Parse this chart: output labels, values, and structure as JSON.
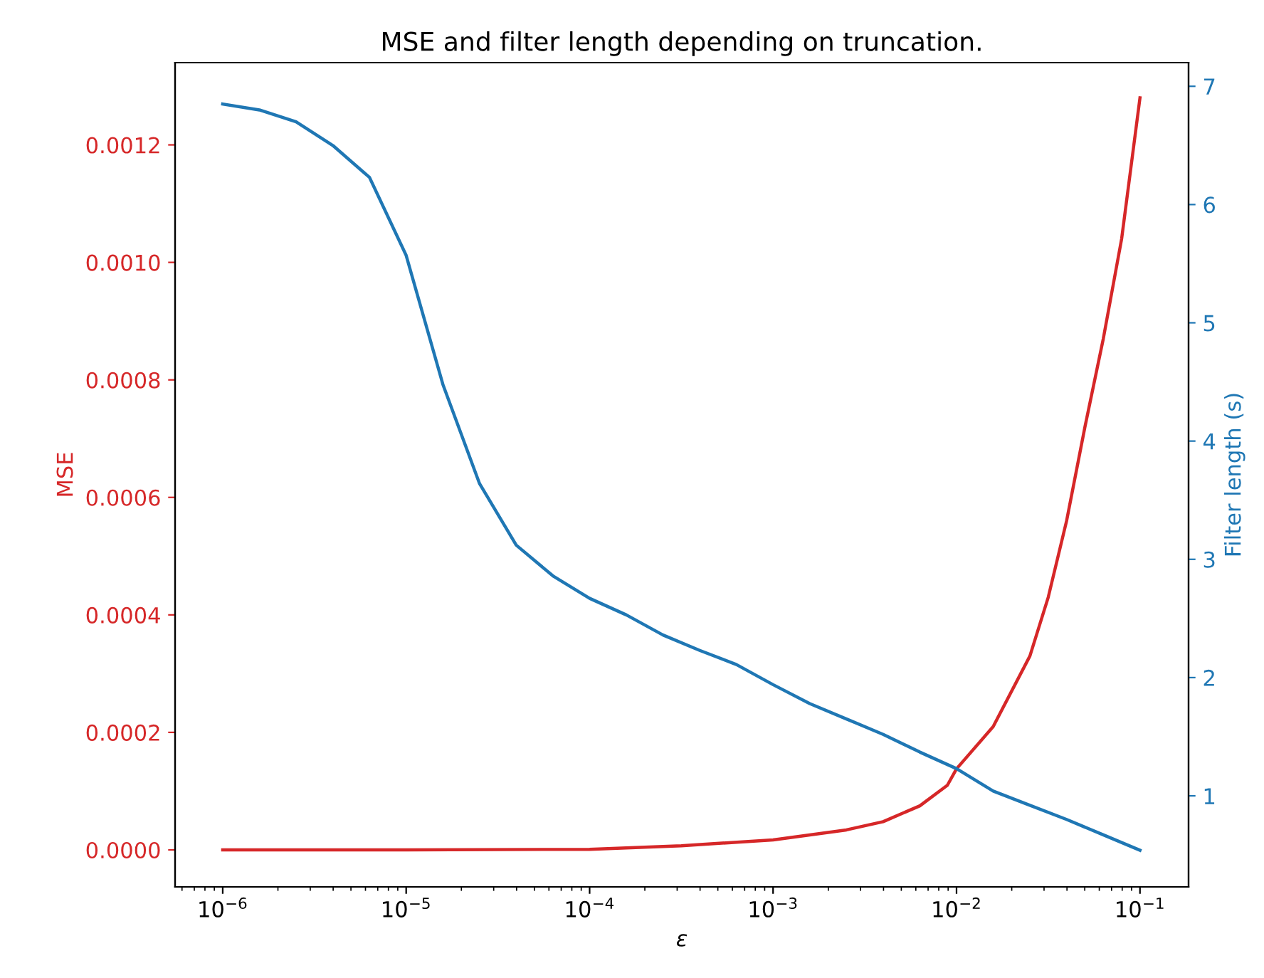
{
  "chart_data": {
    "type": "line",
    "title": "MSE and filter length depending on truncation.",
    "xlabel": "ε",
    "ylabel": "MSE",
    "y2label": "Filter length (s)",
    "log": "x",
    "grid": false,
    "legend": false,
    "xlim": [
      5.5e-07,
      0.184
    ],
    "xticks": [
      {
        "value": 1e-06,
        "label": "10$^{−6}$"
      },
      {
        "value": 1e-05,
        "label": "10$^{−5}$"
      },
      {
        "value": 0.0001,
        "label": "10$^{−4}$"
      },
      {
        "value": 0.001,
        "label": "10$^{−3}$"
      },
      {
        "value": 0.01,
        "label": "10$^{−2}$"
      },
      {
        "value": 0.1,
        "label": "10$^{−1}$"
      }
    ],
    "ylim": [
      -6.3e-05,
      0.00134
    ],
    "yticks": [
      {
        "value": 0,
        "label": "0.0000"
      },
      {
        "value": 0.0002,
        "label": "0.0002"
      },
      {
        "value": 0.0004,
        "label": "0.0004"
      },
      {
        "value": 0.0006,
        "label": "0.0006"
      },
      {
        "value": 0.0008,
        "label": "0.0008"
      },
      {
        "value": 0.001,
        "label": "0.0010"
      },
      {
        "value": 0.0012,
        "label": "0.0012"
      }
    ],
    "y2lim": [
      0.23,
      7.2
    ],
    "y2ticks": [
      1,
      2,
      3,
      4,
      5,
      6,
      7
    ],
    "series": [
      {
        "color": "#d62728",
        "x": [
          1e-06,
          1e-05,
          0.0001,
          0.0003162,
          0.001,
          0.002512,
          0.003981,
          0.00631,
          0.008913,
          0.01,
          0.01585,
          0.02512,
          0.03162,
          0.03981,
          0.05012,
          0.0631,
          0.07943,
          0.1
        ],
        "values": [
          0,
          0,
          1e-06,
          7e-06,
          1.7e-05,
          3.4e-05,
          4.8e-05,
          7.5e-05,
          0.00011,
          0.000138,
          0.00021,
          0.00033,
          0.00043,
          0.00056,
          0.00072,
          0.00087,
          0.00104,
          0.00128
        ]
      },
      {
        "color": "#1f77b4",
        "axis": "y2",
        "x": [
          1e-06,
          1.585e-06,
          2.512e-06,
          3.981e-06,
          6.31e-06,
          1e-05,
          1.585e-05,
          2.512e-05,
          3.981e-05,
          6.31e-05,
          0.0001,
          0.0001585,
          0.0002512,
          0.0003981,
          0.000631,
          0.001,
          0.001585,
          0.002512,
          0.003981,
          0.00631,
          0.01,
          0.01585,
          0.02512,
          0.03981,
          0.0631,
          0.1
        ],
        "values": [
          6.85,
          6.8,
          6.7,
          6.5,
          6.23,
          5.57,
          4.48,
          3.64,
          3.12,
          2.86,
          2.67,
          2.53,
          2.36,
          2.23,
          2.11,
          1.94,
          1.78,
          1.65,
          1.52,
          1.37,
          1.23,
          1.04,
          0.92,
          0.8,
          0.67,
          0.54
        ]
      }
    ]
  }
}
